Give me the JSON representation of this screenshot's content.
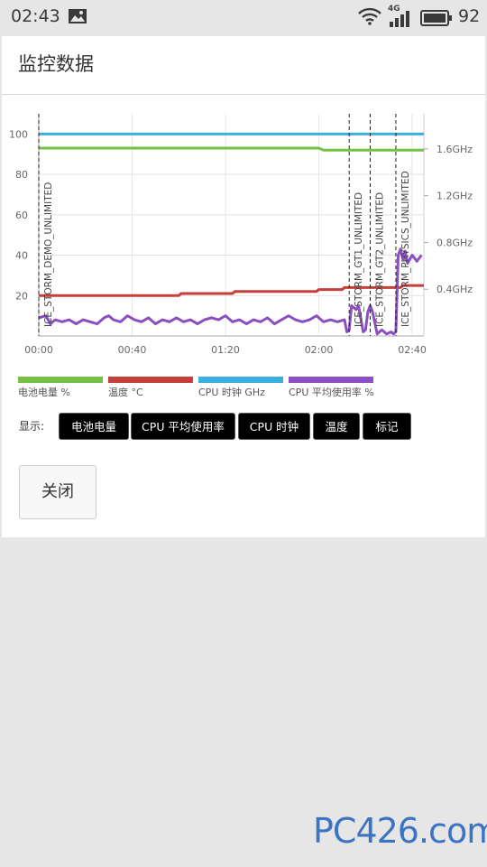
{
  "status_bar": {
    "time": "02:43",
    "network_type": "4G",
    "battery_percent": "92",
    "icons": [
      "image-icon",
      "wifi-icon",
      "signal-icon",
      "battery-icon"
    ]
  },
  "page": {
    "title": "监控数据",
    "display_label": "显示:",
    "close_label": "关闭"
  },
  "toggles": [
    {
      "label": "电池电量"
    },
    {
      "label": "CPU 平均使用率"
    },
    {
      "label": "CPU 时钟"
    },
    {
      "label": "温度"
    },
    {
      "label": "标记"
    }
  ],
  "legend": [
    {
      "label": "电池电量 %",
      "color": "#76c043"
    },
    {
      "label": "温度 °C",
      "color": "#c63f3a"
    },
    {
      "label": "CPU 时钟 GHz",
      "color": "#3aafe0"
    },
    {
      "label": "CPU 平均使用率 %",
      "color": "#8a4fc0"
    }
  ],
  "watermark": "PC426.com",
  "chart_data": {
    "type": "line",
    "x_ticks": [
      "00:00",
      "00:40",
      "01:20",
      "02:00",
      "02:40"
    ],
    "x_range_minutes": [
      0,
      165
    ],
    "y_left_ticks": [
      20,
      40,
      60,
      80,
      100
    ],
    "y_left_range": [
      0,
      110
    ],
    "y_right_ticks": [
      "0.4GHz",
      "0.8GHz",
      "1.2GHz",
      "1.6GHz"
    ],
    "y_right_values": [
      0.4,
      0.8,
      1.2,
      1.6
    ],
    "markers": [
      {
        "label": "ICE_STORM_DEMO_UNLIMITED",
        "x": 0
      },
      {
        "label": "ICE_STORM_GT1_UNLIMITED",
        "x": 133
      },
      {
        "label": "ICE_STORM_GT2_UNLIMITED",
        "x": 142
      },
      {
        "label": "ICE_STORM_PHYSICS_UNLIMITED",
        "x": 153
      }
    ],
    "series": [
      {
        "name": "电池电量 %",
        "color": "#76c043",
        "points": [
          [
            0,
            93
          ],
          [
            120,
            93
          ],
          [
            122,
            92
          ],
          [
            165,
            92
          ]
        ]
      },
      {
        "name": "温度 °C",
        "color": "#c63f3a",
        "points": [
          [
            0,
            20
          ],
          [
            60,
            20
          ],
          [
            61,
            21
          ],
          [
            83,
            21
          ],
          [
            84,
            22
          ],
          [
            119,
            22
          ],
          [
            120,
            23
          ],
          [
            130,
            23
          ],
          [
            131,
            24
          ],
          [
            155,
            24
          ],
          [
            156,
            25
          ],
          [
            165,
            25
          ]
        ]
      },
      {
        "name": "CPU 时钟 GHz",
        "color": "#3aafe0",
        "points": [
          [
            0,
            100
          ],
          [
            165,
            100
          ]
        ]
      },
      {
        "name": "CPU 平均使用率 %",
        "color": "#8a4fc0",
        "points": [
          [
            0,
            9
          ],
          [
            3,
            10
          ],
          [
            5,
            6
          ],
          [
            7,
            8
          ],
          [
            10,
            7
          ],
          [
            13,
            8
          ],
          [
            16,
            6
          ],
          [
            19,
            8
          ],
          [
            22,
            7
          ],
          [
            25,
            6
          ],
          [
            28,
            9
          ],
          [
            30,
            10
          ],
          [
            32,
            8
          ],
          [
            35,
            7
          ],
          [
            38,
            10
          ],
          [
            41,
            8
          ],
          [
            44,
            7
          ],
          [
            47,
            9
          ],
          [
            50,
            6
          ],
          [
            53,
            8
          ],
          [
            56,
            7
          ],
          [
            59,
            9
          ],
          [
            62,
            7
          ],
          [
            65,
            8
          ],
          [
            68,
            6
          ],
          [
            71,
            8
          ],
          [
            74,
            9
          ],
          [
            77,
            8
          ],
          [
            80,
            10
          ],
          [
            83,
            7
          ],
          [
            86,
            8
          ],
          [
            89,
            6
          ],
          [
            92,
            8
          ],
          [
            95,
            7
          ],
          [
            98,
            9
          ],
          [
            101,
            6
          ],
          [
            104,
            8
          ],
          [
            107,
            10
          ],
          [
            110,
            8
          ],
          [
            113,
            7
          ],
          [
            116,
            8
          ],
          [
            119,
            10
          ],
          [
            122,
            7
          ],
          [
            125,
            8
          ],
          [
            128,
            7
          ],
          [
            131,
            8
          ],
          [
            132,
            2
          ],
          [
            133,
            3
          ],
          [
            134,
            15
          ],
          [
            136,
            13
          ],
          [
            137,
            15
          ],
          [
            139,
            2
          ],
          [
            140,
            3
          ],
          [
            141,
            12
          ],
          [
            142,
            15
          ],
          [
            143,
            12
          ],
          [
            145,
            1
          ],
          [
            147,
            3
          ],
          [
            149,
            1
          ],
          [
            151,
            2
          ],
          [
            152,
            1
          ],
          [
            153,
            2
          ],
          [
            154,
            40
          ],
          [
            155,
            43
          ],
          [
            156,
            38
          ],
          [
            157,
            42
          ],
          [
            158,
            36
          ],
          [
            160,
            40
          ],
          [
            162,
            37
          ],
          [
            164,
            40
          ]
        ]
      }
    ]
  }
}
